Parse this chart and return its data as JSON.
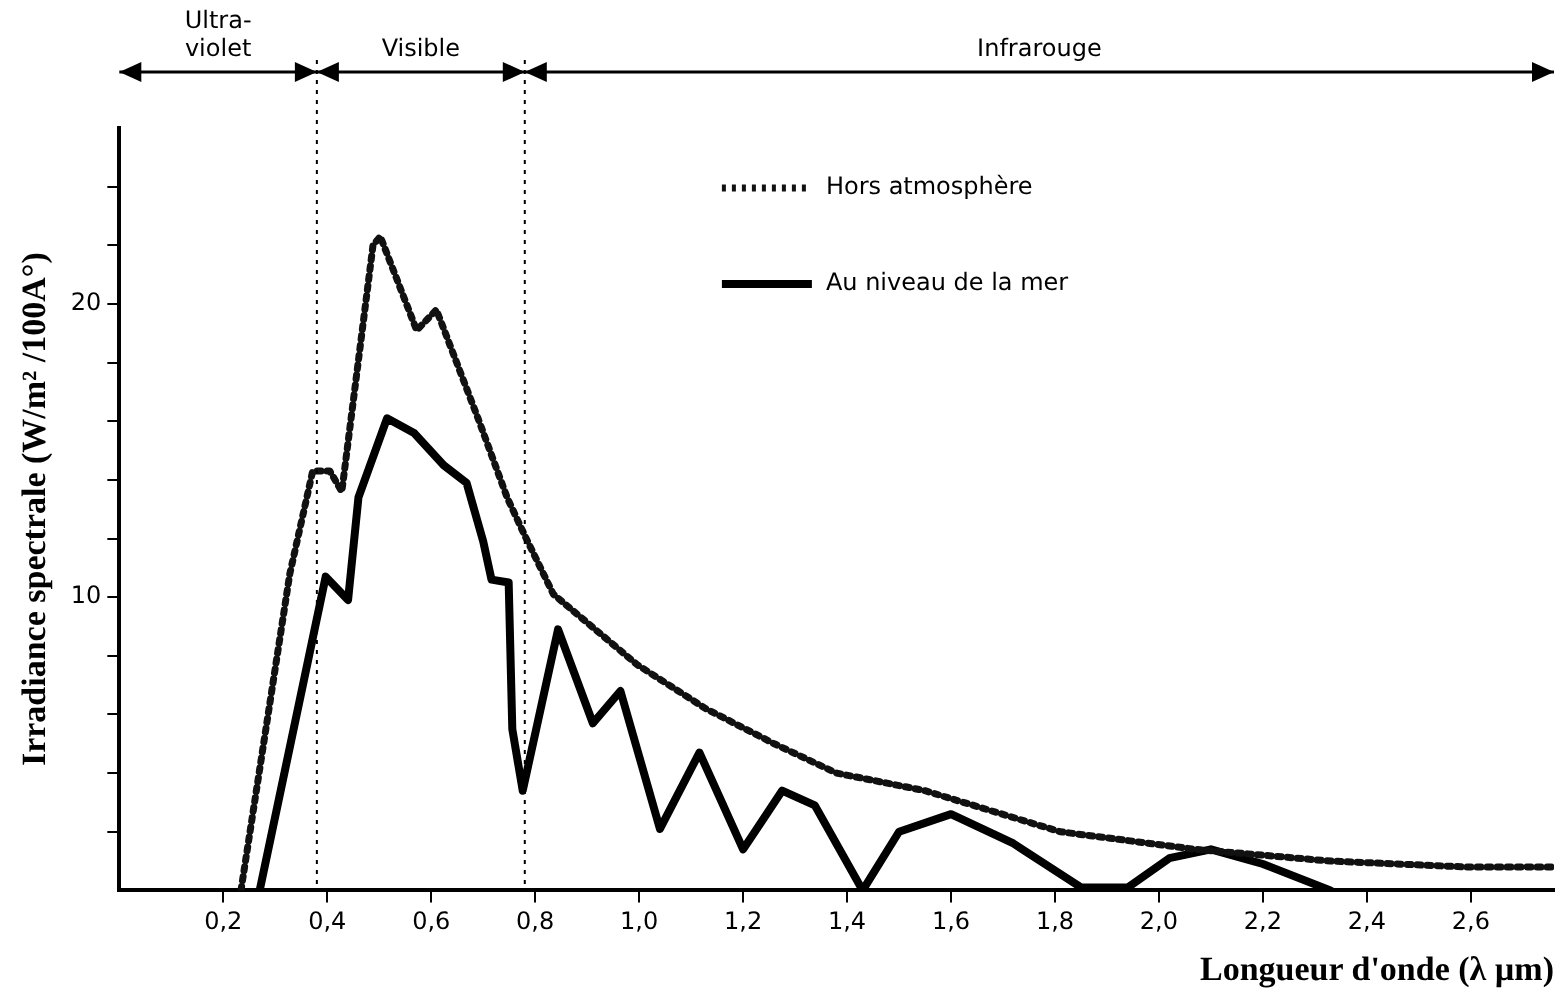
{
  "chart_data": {
    "type": "line",
    "xlabel": "Longueur d'onde (λ µm)",
    "ylabel": "Irradiance spectrale (W/m² /100A°)",
    "xlim": [
      0,
      2.76
    ],
    "ylim": [
      0,
      26
    ],
    "xticks": [
      {
        "value": 0.2,
        "label": "0,2"
      },
      {
        "value": 0.4,
        "label": "0,4"
      },
      {
        "value": 0.6,
        "label": "0,6"
      },
      {
        "value": 0.8,
        "label": "0,8"
      },
      {
        "value": 1.0,
        "label": "1,0"
      },
      {
        "value": 1.2,
        "label": "1,2"
      },
      {
        "value": 1.4,
        "label": "1,4"
      },
      {
        "value": 1.6,
        "label": "1,6"
      },
      {
        "value": 1.8,
        "label": "1,8"
      },
      {
        "value": 2.0,
        "label": "2,0"
      },
      {
        "value": 2.2,
        "label": "2,2"
      },
      {
        "value": 2.4,
        "label": "2,4"
      },
      {
        "value": 2.6,
        "label": "2,6"
      }
    ],
    "yticks": [
      {
        "value": 2,
        "label": null
      },
      {
        "value": 4,
        "label": null
      },
      {
        "value": 6,
        "label": null
      },
      {
        "value": 8,
        "label": null
      },
      10,
      {
        "value": 12,
        "label": null
      },
      {
        "value": 14,
        "label": null
      },
      {
        "value": 16,
        "label": null
      },
      {
        "value": 18,
        "label": null
      },
      20,
      {
        "value": 22,
        "label": null
      },
      {
        "value": 24,
        "label": null
      }
    ],
    "grid": false,
    "legend": "top right",
    "marker": "none",
    "series": [
      {
        "name": "Hors atmosphère",
        "color": "#111111",
        "line_style": "dotted",
        "x": [
          0.234,
          0.328,
          0.372,
          0.405,
          0.428,
          0.488,
          0.502,
          0.572,
          0.61,
          0.69,
          0.746,
          0.78,
          0.835,
          0.996,
          1.128,
          1.26,
          1.38,
          1.55,
          1.81,
          2.07,
          2.33,
          2.59,
          2.76
        ],
        "values": [
          0,
          10.8,
          14.3,
          14.3,
          13.6,
          22.0,
          22.3,
          19.1,
          19.8,
          16.1,
          13.4,
          12.1,
          10.1,
          7.7,
          6.2,
          5.0,
          4.0,
          3.4,
          2.0,
          1.4,
          1.0,
          0.8,
          0.8
        ]
      },
      {
        "name": "Au niveau de la mer",
        "color": "#000000",
        "line_style": "solid",
        "x": [
          0.27,
          0.397,
          0.44,
          0.46,
          0.515,
          0.567,
          0.624,
          0.668,
          0.7,
          0.716,
          0.749,
          0.756,
          0.776,
          0.844,
          0.911,
          0.964,
          1.04,
          1.116,
          1.2,
          1.275,
          1.338,
          1.43,
          1.5,
          1.6,
          1.72,
          1.85,
          1.94,
          2.02,
          2.1,
          2.2,
          2.33
        ],
        "values": [
          0,
          10.7,
          9.9,
          13.4,
          16.1,
          15.6,
          14.5,
          13.9,
          11.9,
          10.6,
          10.5,
          5.5,
          3.4,
          8.9,
          5.7,
          6.8,
          2.1,
          4.7,
          1.4,
          3.4,
          2.9,
          0,
          2.0,
          2.6,
          1.6,
          0.1,
          0.1,
          1.1,
          1.4,
          0.9,
          0
        ]
      }
    ],
    "ref_lines": [
      {
        "axis": "x",
        "value": 0.38,
        "line_style": "dotted",
        "color": "#000000"
      },
      {
        "axis": "x",
        "value": 0.78,
        "line_style": "dotted",
        "color": "#000000"
      }
    ],
    "annotations": [
      "Ultra-violet",
      "Visible",
      "Infrarouge"
    ]
  }
}
